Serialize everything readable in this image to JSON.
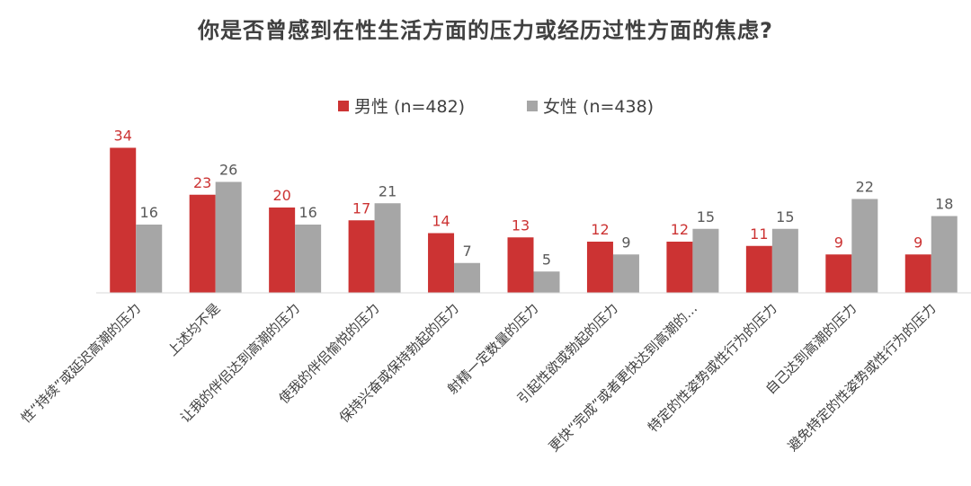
{
  "chart_data": {
    "type": "bar",
    "title": "你是否曾感到在性生活方面的压力或经历过性方面的焦虑?",
    "xlabel": "",
    "ylabel": "",
    "ylim": [
      0,
      36
    ],
    "grid": false,
    "legend_position": "top-center",
    "categories": [
      "性“持续”或延迟高潮的压力",
      "上述均不是",
      "让我的伴侣达到高潮的压力",
      "使我的伴侣愉悦的压力",
      "保持兴奋或保持勃起的压力",
      "射精一定数量的压力",
      "引起性欲或勃起的压力",
      "更快“完成”或者更快达到高潮的…",
      "特定的性姿势或性行为的压力",
      "自己达到高潮的压力",
      "避免特定的性姿势或性行为的压力"
    ],
    "series": [
      {
        "name": "男性 (n=482)",
        "color": "#cc3333",
        "values": [
          34,
          23,
          20,
          17,
          14,
          13,
          12,
          12,
          11,
          9,
          9
        ]
      },
      {
        "name": "女性 (n=438)",
        "color": "#a6a6a6",
        "values": [
          16,
          26,
          16,
          21,
          7,
          5,
          9,
          15,
          15,
          22,
          18
        ]
      }
    ],
    "label_colors": [
      "#cc3333",
      "#595959"
    ]
  }
}
